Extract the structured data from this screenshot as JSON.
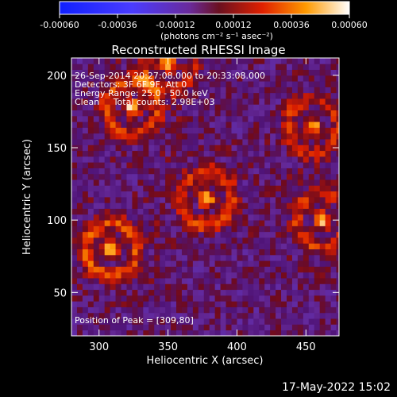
{
  "chart_data": {
    "type": "heatmap",
    "title": "Reconstructed RHESSI Image",
    "xlabel": "Heliocentric X (arcsec)",
    "ylabel": "Heliocentric Y (arcsec)",
    "xlim": [
      280,
      474
    ],
    "ylim": [
      20,
      212
    ],
    "xticks": [
      300,
      350,
      400,
      450
    ],
    "yticks": [
      50,
      100,
      150,
      200
    ],
    "colorbar": {
      "ticks": [
        "-0.00060",
        "-0.00036",
        "-0.00012",
        "0.00012",
        "0.00036",
        "0.00060"
      ],
      "min": -0.0006,
      "max": 0.0006,
      "units_label": "(photons cm⁻² s⁻¹ asec⁻²)"
    },
    "info_lines": [
      "26-Sep-2014 20:27:08.000 to 20:33:08.000",
      "Detectors: 3F 6F 9F, Att 0",
      "Energy Range: 25.0 - 50.0 keV",
      "Clean     Total counts: 2.98E+03"
    ],
    "peak_label": "Position of Peak = [309,80]",
    "sources": [
      {
        "x": 309,
        "y": 80,
        "amplitude": 0.0006
      },
      {
        "x": 324,
        "y": 178,
        "amplitude": 0.0005
      },
      {
        "x": 378,
        "y": 115,
        "amplitude": 0.00052
      },
      {
        "x": 455,
        "y": 165,
        "amplitude": 0.00045
      },
      {
        "x": 462,
        "y": 100,
        "amplitude": 0.0005
      },
      {
        "x": 350,
        "y": 208,
        "amplitude": 0.0004
      }
    ],
    "colors": {
      "negative": "#0000ff",
      "zero": "#5a1a8c",
      "positive_mid": "#ff3000",
      "positive_max": "#ffffff"
    }
  },
  "timestamp": "17-May-2022 15:02"
}
